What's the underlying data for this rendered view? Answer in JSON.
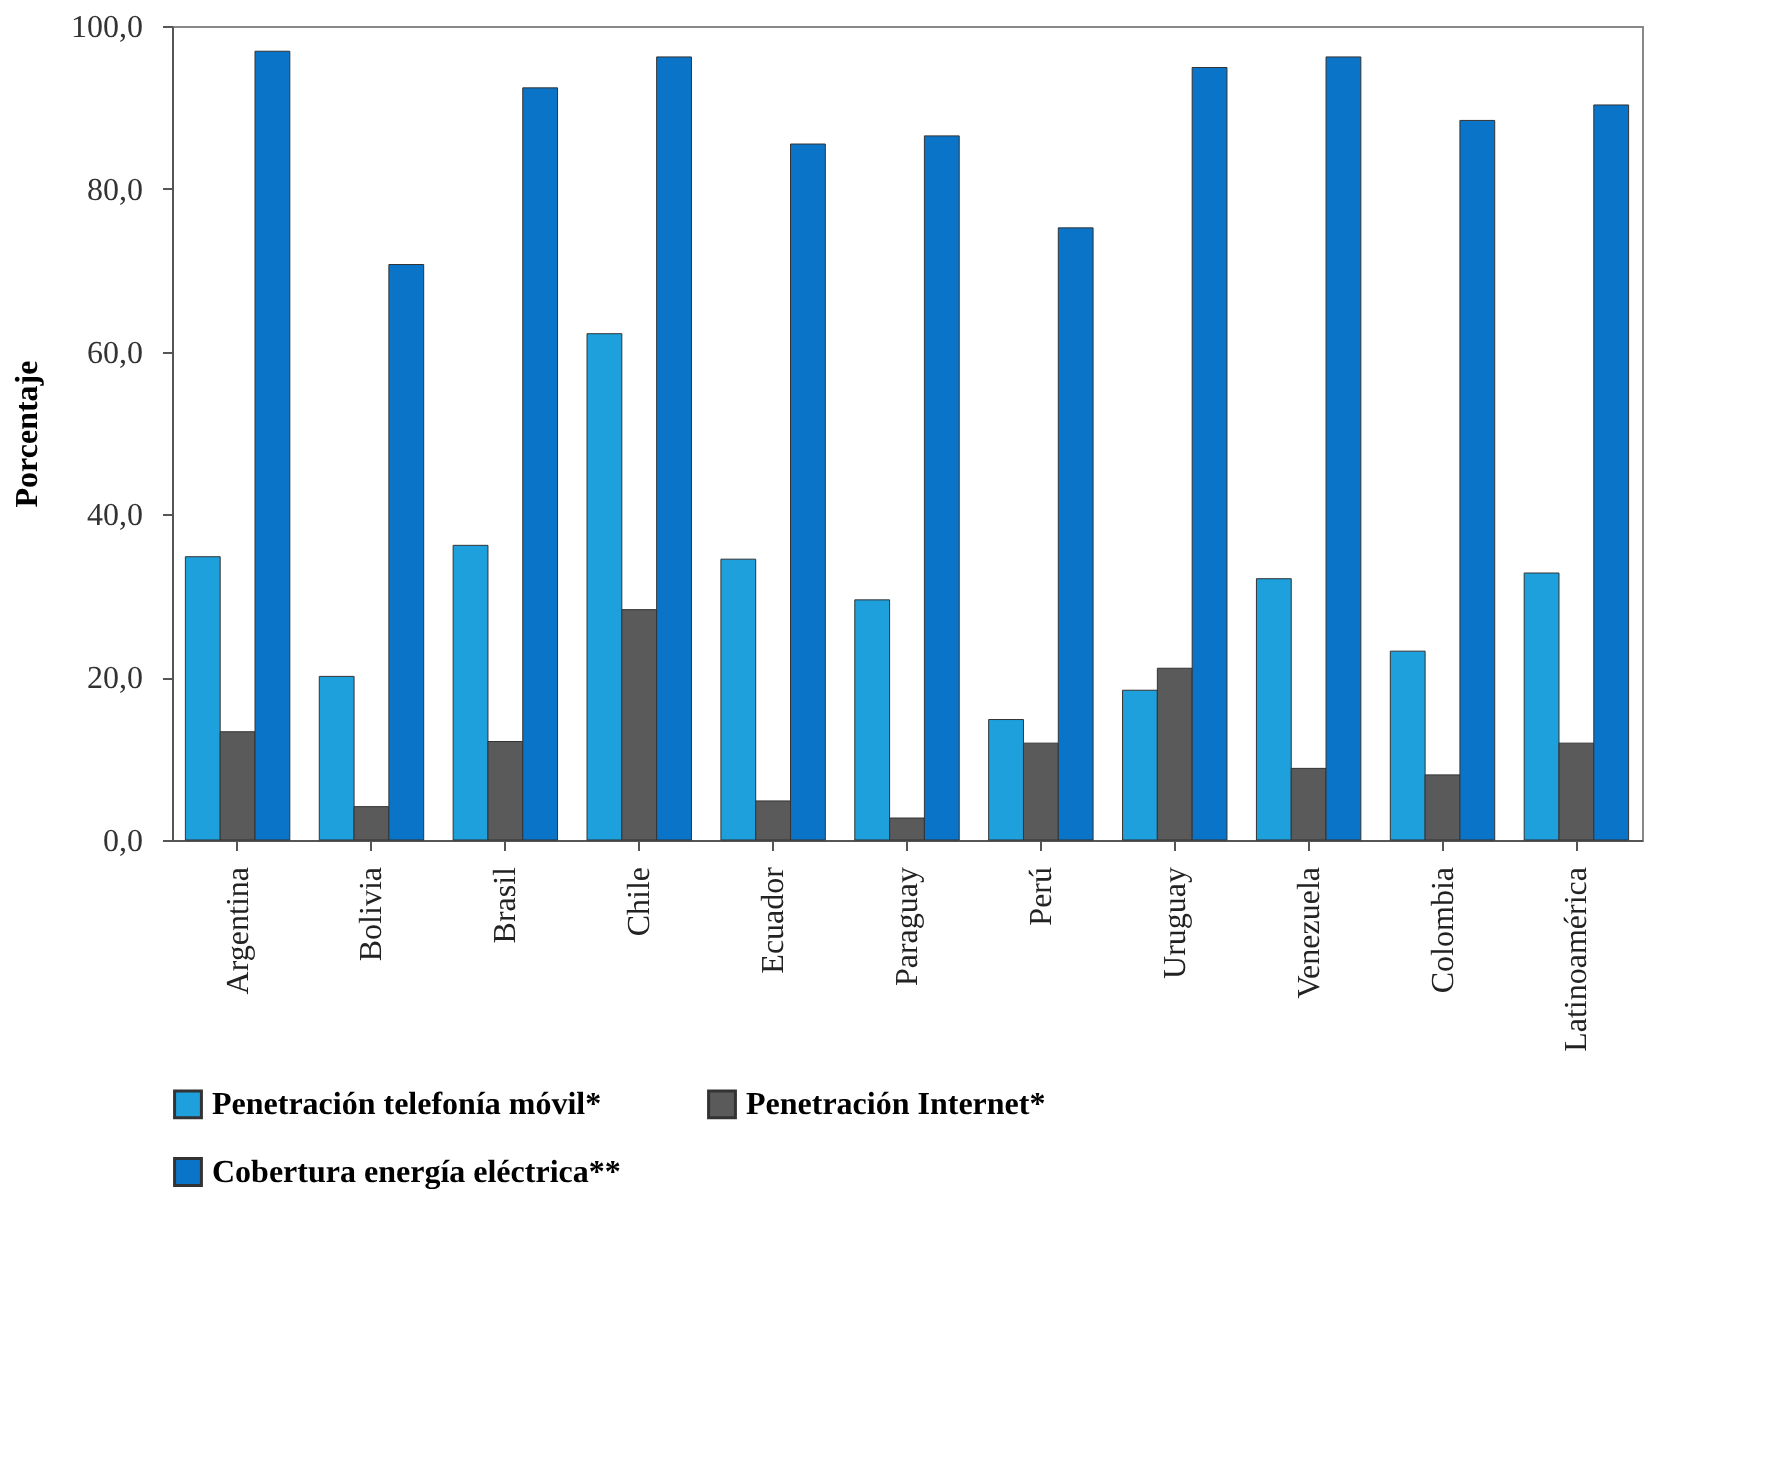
{
  "chart_data": {
    "type": "bar",
    "ylabel": "Porcentaje",
    "categories": [
      "Argentina",
      "Bolivia",
      "Brasil",
      "Chile",
      "Ecuador",
      "Paraguay",
      "Perú",
      "Uruguay",
      "Venezuela",
      "Colombia",
      "Latinoamérica"
    ],
    "series": [
      {
        "name": "Penetración telefonía móvil*",
        "color": "#1ea0dc",
        "values": [
          34.8,
          20.1,
          36.2,
          62.2,
          34.5,
          29.5,
          14.8,
          18.4,
          32.1,
          23.2,
          32.8
        ]
      },
      {
        "name": "Penetración Internet*",
        "color": "#5a5a5a",
        "values": [
          13.3,
          4.1,
          12.1,
          28.3,
          4.8,
          2.7,
          11.9,
          21.1,
          8.8,
          8.0,
          11.9
        ]
      },
      {
        "name": "Cobertura energía eléctrica**",
        "color": "#0a74c8",
        "values": [
          96.9,
          70.7,
          92.4,
          96.2,
          85.5,
          86.5,
          75.2,
          94.9,
          96.2,
          88.4,
          90.3
        ]
      }
    ],
    "ylim": [
      0,
      100
    ],
    "yticks": [
      {
        "value": 0,
        "label": "0,0"
      },
      {
        "value": 20,
        "label": "20,0"
      },
      {
        "value": 40,
        "label": "40,0"
      },
      {
        "value": 60,
        "label": "60,0"
      },
      {
        "value": 80,
        "label": "80,0"
      },
      {
        "value": 100,
        "label": "100,0"
      }
    ],
    "grid": false,
    "legend": "bottom"
  }
}
